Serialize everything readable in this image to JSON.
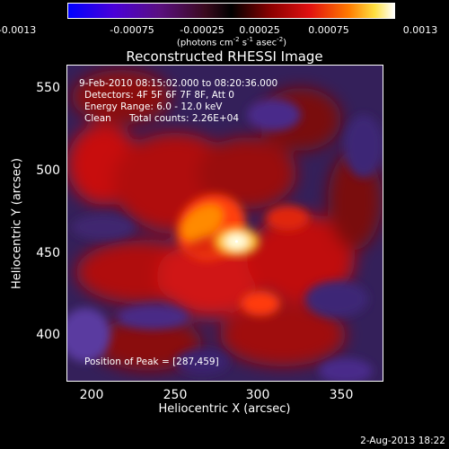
{
  "chart_data": {
    "type": "heatmap",
    "title": "Reconstructed RHESSI Image",
    "xlabel": "Heliocentric X (arcsec)",
    "ylabel": "Heliocentric Y (arcsec)",
    "xlim": [
      185,
      375
    ],
    "ylim": [
      375,
      565
    ],
    "x_ticks": [
      "200",
      "250",
      "300",
      "350"
    ],
    "y_ticks": [
      "550",
      "500",
      "450",
      "400"
    ],
    "colorbar": {
      "ticks": [
        "-0.0013",
        "-0.00075",
        "-0.00025",
        "0.00025",
        "0.00075",
        "0.0013"
      ],
      "range": [
        -0.0013,
        0.0013
      ],
      "units_label": "(photons cm",
      "units_sup1": "-2",
      "units_mid": " s",
      "units_sup2": "-1",
      "units_mid2": " asec",
      "units_sup3": "-2",
      "units_end": ")"
    },
    "annotations": {
      "time_range": "9-Feb-2010 08:15:02.000 to 08:20:36.000",
      "detectors": "Detectors: 4F 5F 6F 7F 8F, Att 0",
      "energy": "Energy Range: 6.0 - 12.0 keV",
      "method": "Clean",
      "counts": "Total counts: 2.26E+04",
      "peak": "Position of Peak = [287,459]"
    },
    "peak": {
      "x": 287,
      "y": 459
    },
    "colors": {
      "background": "#000000",
      "foreground": "#ffffff"
    }
  },
  "footer": {
    "date": "2-Aug-2013 18:22"
  }
}
